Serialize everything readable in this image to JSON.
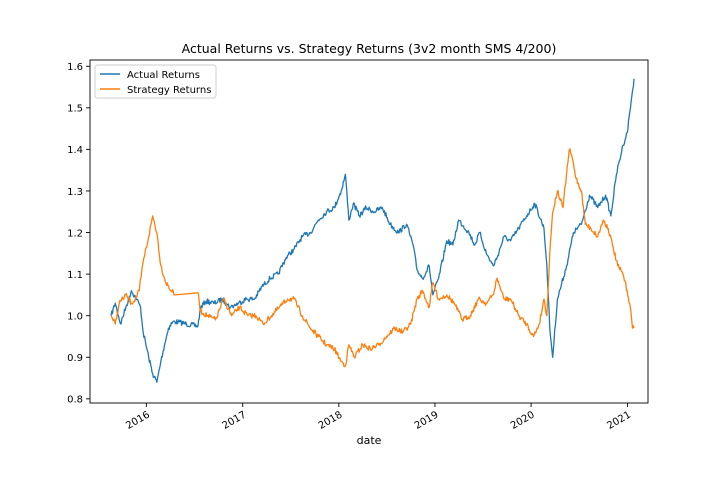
{
  "chart_data": {
    "type": "line",
    "title": "Actual Returns vs. Strategy Returns (3v2 month SMS 4/200)",
    "xlabel": "date",
    "ylabel": "",
    "xlim": [
      "2015-06-01",
      "2021-03-20"
    ],
    "ylim": [
      0.79,
      1.615
    ],
    "yticks": [
      0.8,
      0.9,
      1.0,
      1.1,
      1.2,
      1.3,
      1.4,
      1.5,
      1.6
    ],
    "ytick_labels": [
      "0.8",
      "0.9",
      "1.0",
      "1.1",
      "1.2",
      "1.3",
      "1.4",
      "1.5",
      "1.6"
    ],
    "xticks": [
      "2016-01-01",
      "2017-01-01",
      "2018-01-01",
      "2019-01-01",
      "2020-01-01",
      "2021-01-01"
    ],
    "xtick_labels": [
      "2016",
      "2017",
      "2018",
      "2019",
      "2020",
      "2021"
    ],
    "grid": false,
    "legend_position": "top-left",
    "series": [
      {
        "name": "Actual Returns",
        "color": "#1f77b4",
        "points": [
          [
            "2015-08-20",
            1.0
          ],
          [
            "2015-09-05",
            1.03
          ],
          [
            "2015-09-25",
            0.98
          ],
          [
            "2015-10-15",
            1.02
          ],
          [
            "2015-11-05",
            1.06
          ],
          [
            "2015-11-25",
            1.04
          ],
          [
            "2015-12-10",
            1.02
          ],
          [
            "2015-12-20",
            0.96
          ],
          [
            "2016-01-10",
            0.9
          ],
          [
            "2016-01-25",
            0.86
          ],
          [
            "2016-02-10",
            0.84
          ],
          [
            "2016-02-25",
            0.89
          ],
          [
            "2016-03-10",
            0.93
          ],
          [
            "2016-03-25",
            0.97
          ],
          [
            "2016-04-10",
            0.985
          ],
          [
            "2016-05-01",
            0.985
          ],
          [
            "2016-06-01",
            0.98
          ],
          [
            "2016-07-15",
            0.975
          ],
          [
            "2016-07-25",
            1.02
          ],
          [
            "2016-08-15",
            1.035
          ],
          [
            "2016-09-15",
            1.03
          ],
          [
            "2016-10-15",
            1.04
          ],
          [
            "2016-11-15",
            1.02
          ],
          [
            "2016-12-15",
            1.03
          ],
          [
            "2017-01-15",
            1.04
          ],
          [
            "2017-02-15",
            1.04
          ],
          [
            "2017-03-15",
            1.07
          ],
          [
            "2017-04-15",
            1.09
          ],
          [
            "2017-05-15",
            1.1
          ],
          [
            "2017-06-15",
            1.14
          ],
          [
            "2017-07-15",
            1.16
          ],
          [
            "2017-08-15",
            1.19
          ],
          [
            "2017-09-15",
            1.2
          ],
          [
            "2017-10-15",
            1.23
          ],
          [
            "2017-11-15",
            1.25
          ],
          [
            "2017-12-15",
            1.26
          ],
          [
            "2018-01-10",
            1.3
          ],
          [
            "2018-01-26",
            1.34
          ],
          [
            "2018-02-08",
            1.23
          ],
          [
            "2018-02-25",
            1.27
          ],
          [
            "2018-03-20",
            1.24
          ],
          [
            "2018-04-15",
            1.26
          ],
          [
            "2018-05-15",
            1.25
          ],
          [
            "2018-06-15",
            1.26
          ],
          [
            "2018-07-15",
            1.22
          ],
          [
            "2018-08-15",
            1.2
          ],
          [
            "2018-09-15",
            1.22
          ],
          [
            "2018-10-10",
            1.17
          ],
          [
            "2018-10-25",
            1.11
          ],
          [
            "2018-11-15",
            1.09
          ],
          [
            "2018-12-10",
            1.12
          ],
          [
            "2018-12-24",
            1.05
          ],
          [
            "2019-01-15",
            1.09
          ],
          [
            "2019-02-15",
            1.18
          ],
          [
            "2019-03-10",
            1.17
          ],
          [
            "2019-04-01",
            1.23
          ],
          [
            "2019-05-10",
            1.2
          ],
          [
            "2019-06-01",
            1.17
          ],
          [
            "2019-06-20",
            1.2
          ],
          [
            "2019-07-15",
            1.15
          ],
          [
            "2019-08-10",
            1.12
          ],
          [
            "2019-08-25",
            1.14
          ],
          [
            "2019-09-20",
            1.19
          ],
          [
            "2019-10-15",
            1.18
          ],
          [
            "2019-11-15",
            1.21
          ],
          [
            "2019-12-15",
            1.24
          ],
          [
            "2020-01-15",
            1.27
          ],
          [
            "2020-02-19",
            1.21
          ],
          [
            "2020-03-01",
            1.12
          ],
          [
            "2020-03-12",
            0.97
          ],
          [
            "2020-03-23",
            0.9
          ],
          [
            "2020-04-10",
            1.04
          ],
          [
            "2020-05-15",
            1.12
          ],
          [
            "2020-06-10",
            1.2
          ],
          [
            "2020-07-10",
            1.22
          ],
          [
            "2020-08-10",
            1.29
          ],
          [
            "2020-09-10",
            1.26
          ],
          [
            "2020-10-10",
            1.29
          ],
          [
            "2020-10-30",
            1.24
          ],
          [
            "2020-11-20",
            1.34
          ],
          [
            "2020-12-15",
            1.41
          ],
          [
            "2020-12-31",
            1.44
          ],
          [
            "2021-01-10",
            1.49
          ],
          [
            "2021-01-18",
            1.53
          ],
          [
            "2021-01-26",
            1.57
          ]
        ]
      },
      {
        "name": "Strategy Returns",
        "color": "#ff7f0e",
        "points": [
          [
            "2015-08-20",
            1.0
          ],
          [
            "2015-09-05",
            0.98
          ],
          [
            "2015-09-20",
            1.03
          ],
          [
            "2015-10-15",
            1.05
          ],
          [
            "2015-11-05",
            1.03
          ],
          [
            "2015-11-20",
            1.04
          ],
          [
            "2015-12-05",
            1.06
          ],
          [
            "2015-12-20",
            1.13
          ],
          [
            "2016-01-10",
            1.19
          ],
          [
            "2016-01-25",
            1.24
          ],
          [
            "2016-02-10",
            1.2
          ],
          [
            "2016-02-25",
            1.12
          ],
          [
            "2016-03-15",
            1.08
          ],
          [
            "2016-04-05",
            1.06
          ],
          [
            "2016-04-20",
            1.05
          ],
          [
            "2016-07-15",
            1.055
          ],
          [
            "2016-07-25",
            1.01
          ],
          [
            "2016-08-20",
            1.0
          ],
          [
            "2016-09-20",
            0.99
          ],
          [
            "2016-10-20",
            1.04
          ],
          [
            "2016-11-20",
            1.0
          ],
          [
            "2016-12-20",
            1.02
          ],
          [
            "2017-01-20",
            1.0
          ],
          [
            "2017-02-20",
            1.0
          ],
          [
            "2017-03-20",
            0.98
          ],
          [
            "2017-04-20",
            1.0
          ],
          [
            "2017-05-20",
            1.02
          ],
          [
            "2017-06-20",
            1.04
          ],
          [
            "2017-07-15",
            1.04
          ],
          [
            "2017-08-15",
            1.0
          ],
          [
            "2017-09-15",
            0.97
          ],
          [
            "2017-10-15",
            0.95
          ],
          [
            "2017-11-15",
            0.93
          ],
          [
            "2017-12-15",
            0.92
          ],
          [
            "2018-01-10",
            0.89
          ],
          [
            "2018-01-26",
            0.88
          ],
          [
            "2018-02-08",
            0.93
          ],
          [
            "2018-03-01",
            0.9
          ],
          [
            "2018-04-01",
            0.93
          ],
          [
            "2018-05-01",
            0.92
          ],
          [
            "2018-06-01",
            0.93
          ],
          [
            "2018-07-01",
            0.95
          ],
          [
            "2018-08-01",
            0.97
          ],
          [
            "2018-09-01",
            0.96
          ],
          [
            "2018-10-01",
            0.98
          ],
          [
            "2018-10-25",
            1.04
          ],
          [
            "2018-11-15",
            1.06
          ],
          [
            "2018-12-10",
            1.02
          ],
          [
            "2018-12-24",
            1.08
          ],
          [
            "2019-01-15",
            1.04
          ],
          [
            "2019-02-15",
            1.05
          ],
          [
            "2019-03-15",
            1.03
          ],
          [
            "2019-04-15",
            0.99
          ],
          [
            "2019-05-15",
            1.0
          ],
          [
            "2019-06-15",
            1.04
          ],
          [
            "2019-07-15",
            1.03
          ],
          [
            "2019-08-10",
            1.05
          ],
          [
            "2019-08-25",
            1.09
          ],
          [
            "2019-09-20",
            1.04
          ],
          [
            "2019-10-15",
            1.04
          ],
          [
            "2019-11-15",
            1.0
          ],
          [
            "2019-12-15",
            0.98
          ],
          [
            "2020-01-10",
            0.95
          ],
          [
            "2020-02-01",
            0.98
          ],
          [
            "2020-02-19",
            1.04
          ],
          [
            "2020-03-01",
            1.0
          ],
          [
            "2020-03-12",
            1.15
          ],
          [
            "2020-03-23",
            1.25
          ],
          [
            "2020-04-10",
            1.3
          ],
          [
            "2020-05-01",
            1.26
          ],
          [
            "2020-05-25",
            1.4
          ],
          [
            "2020-06-05",
            1.38
          ],
          [
            "2020-06-20",
            1.33
          ],
          [
            "2020-07-10",
            1.3
          ],
          [
            "2020-07-25",
            1.22
          ],
          [
            "2020-08-15",
            1.21
          ],
          [
            "2020-09-10",
            1.19
          ],
          [
            "2020-10-01",
            1.23
          ],
          [
            "2020-10-20",
            1.21
          ],
          [
            "2020-11-05",
            1.17
          ],
          [
            "2020-11-25",
            1.12
          ],
          [
            "2020-12-15",
            1.1
          ],
          [
            "2020-12-31",
            1.06
          ],
          [
            "2021-01-12",
            1.02
          ],
          [
            "2021-01-20",
            0.97
          ],
          [
            "2021-01-26",
            0.97
          ]
        ]
      }
    ]
  }
}
